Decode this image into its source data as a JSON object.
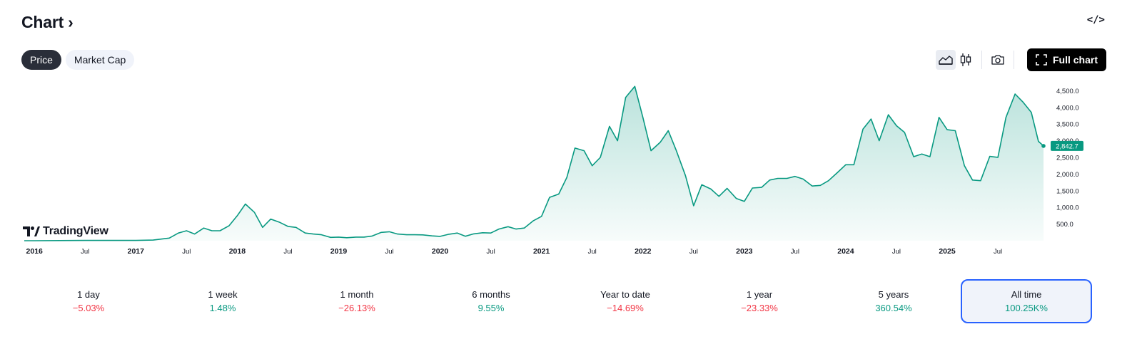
{
  "header": {
    "title": "Chart",
    "chevron": "›"
  },
  "embed_label": "</>",
  "tabs": [
    {
      "label": "Price",
      "active": true
    },
    {
      "label": "Market Cap",
      "active": false
    }
  ],
  "toolbar": {
    "full_chart_label": "Full chart",
    "icons": [
      "area-chart-icon",
      "candles-icon",
      "camera-icon",
      "fullscreen-icon"
    ]
  },
  "logo_text": "TradingView",
  "colors": {
    "line": "#089981",
    "accent_positive": "#089981",
    "accent_negative": "#f23645",
    "active_border": "#2962ff"
  },
  "chart_data": {
    "type": "area",
    "x_ticks": [
      {
        "label": "2016",
        "t": 2016.0,
        "bold": true
      },
      {
        "label": "Jul",
        "t": 2016.5,
        "bold": false
      },
      {
        "label": "2017",
        "t": 2017.0,
        "bold": true
      },
      {
        "label": "Jul",
        "t": 2017.5,
        "bold": false
      },
      {
        "label": "2018",
        "t": 2018.0,
        "bold": true
      },
      {
        "label": "Jul",
        "t": 2018.5,
        "bold": false
      },
      {
        "label": "2019",
        "t": 2019.0,
        "bold": true
      },
      {
        "label": "Jul",
        "t": 2019.5,
        "bold": false
      },
      {
        "label": "2020",
        "t": 2020.0,
        "bold": true
      },
      {
        "label": "Jul",
        "t": 2020.5,
        "bold": false
      },
      {
        "label": "2021",
        "t": 2021.0,
        "bold": true
      },
      {
        "label": "Jul",
        "t": 2021.5,
        "bold": false
      },
      {
        "label": "2022",
        "t": 2022.0,
        "bold": true
      },
      {
        "label": "Jul",
        "t": 2022.5,
        "bold": false
      },
      {
        "label": "2023",
        "t": 2023.0,
        "bold": true
      },
      {
        "label": "Jul",
        "t": 2023.5,
        "bold": false
      },
      {
        "label": "2024",
        "t": 2024.0,
        "bold": true
      },
      {
        "label": "Jul",
        "t": 2024.5,
        "bold": false
      },
      {
        "label": "2025",
        "t": 2025.0,
        "bold": true
      },
      {
        "label": "Jul",
        "t": 2025.5,
        "bold": false
      }
    ],
    "y_ticks": [
      "500.0",
      "1,000.0",
      "1,500.0",
      "2,000.0",
      "2,500.0",
      "3,000.0",
      "3,500.0",
      "4,000.0",
      "4,500.0"
    ],
    "y_tick_values": [
      500,
      1000,
      1500,
      2000,
      2500,
      3000,
      3500,
      4000,
      4500
    ],
    "ylim": [
      0,
      4700
    ],
    "xlim": [
      2015.9,
      2025.95
    ],
    "last_value": 2842.7,
    "last_value_label": "2,842.7",
    "series": [
      {
        "t": 2015.9,
        "v": 1
      },
      {
        "t": 2016.0,
        "v": 1
      },
      {
        "t": 2016.5,
        "v": 9
      },
      {
        "t": 2017.0,
        "v": 8
      },
      {
        "t": 2017.17,
        "v": 20
      },
      {
        "t": 2017.25,
        "v": 50
      },
      {
        "t": 2017.33,
        "v": 80
      },
      {
        "t": 2017.42,
        "v": 230
      },
      {
        "t": 2017.5,
        "v": 300
      },
      {
        "t": 2017.58,
        "v": 200
      },
      {
        "t": 2017.67,
        "v": 380
      },
      {
        "t": 2017.75,
        "v": 300
      },
      {
        "t": 2017.83,
        "v": 300
      },
      {
        "t": 2017.92,
        "v": 450
      },
      {
        "t": 2018.0,
        "v": 750
      },
      {
        "t": 2018.08,
        "v": 1100
      },
      {
        "t": 2018.17,
        "v": 850
      },
      {
        "t": 2018.25,
        "v": 400
      },
      {
        "t": 2018.33,
        "v": 650
      },
      {
        "t": 2018.42,
        "v": 550
      },
      {
        "t": 2018.5,
        "v": 430
      },
      {
        "t": 2018.58,
        "v": 400
      },
      {
        "t": 2018.67,
        "v": 230
      },
      {
        "t": 2018.75,
        "v": 200
      },
      {
        "t": 2018.83,
        "v": 180
      },
      {
        "t": 2018.92,
        "v": 100
      },
      {
        "t": 2019.0,
        "v": 110
      },
      {
        "t": 2019.08,
        "v": 90
      },
      {
        "t": 2019.17,
        "v": 110
      },
      {
        "t": 2019.25,
        "v": 110
      },
      {
        "t": 2019.33,
        "v": 140
      },
      {
        "t": 2019.42,
        "v": 250
      },
      {
        "t": 2019.5,
        "v": 270
      },
      {
        "t": 2019.58,
        "v": 200
      },
      {
        "t": 2019.67,
        "v": 180
      },
      {
        "t": 2019.75,
        "v": 180
      },
      {
        "t": 2019.83,
        "v": 175
      },
      {
        "t": 2019.92,
        "v": 145
      },
      {
        "t": 2020.0,
        "v": 130
      },
      {
        "t": 2020.08,
        "v": 190
      },
      {
        "t": 2020.17,
        "v": 230
      },
      {
        "t": 2020.25,
        "v": 135
      },
      {
        "t": 2020.33,
        "v": 205
      },
      {
        "t": 2020.42,
        "v": 240
      },
      {
        "t": 2020.5,
        "v": 230
      },
      {
        "t": 2020.58,
        "v": 350
      },
      {
        "t": 2020.67,
        "v": 420
      },
      {
        "t": 2020.75,
        "v": 350
      },
      {
        "t": 2020.83,
        "v": 380
      },
      {
        "t": 2020.92,
        "v": 600
      },
      {
        "t": 2021.0,
        "v": 730
      },
      {
        "t": 2021.08,
        "v": 1300
      },
      {
        "t": 2021.17,
        "v": 1400
      },
      {
        "t": 2021.25,
        "v": 1900
      },
      {
        "t": 2021.33,
        "v": 2780
      },
      {
        "t": 2021.42,
        "v": 2700
      },
      {
        "t": 2021.5,
        "v": 2250
      },
      {
        "t": 2021.58,
        "v": 2500
      },
      {
        "t": 2021.67,
        "v": 3430
      },
      {
        "t": 2021.75,
        "v": 3000
      },
      {
        "t": 2021.83,
        "v": 4300
      },
      {
        "t": 2021.92,
        "v": 4630
      },
      {
        "t": 2022.0,
        "v": 3700
      },
      {
        "t": 2022.08,
        "v": 2700
      },
      {
        "t": 2022.17,
        "v": 2950
      },
      {
        "t": 2022.25,
        "v": 3300
      },
      {
        "t": 2022.33,
        "v": 2700
      },
      {
        "t": 2022.42,
        "v": 1950
      },
      {
        "t": 2022.5,
        "v": 1050
      },
      {
        "t": 2022.58,
        "v": 1680
      },
      {
        "t": 2022.67,
        "v": 1550
      },
      {
        "t": 2022.75,
        "v": 1330
      },
      {
        "t": 2022.83,
        "v": 1570
      },
      {
        "t": 2022.92,
        "v": 1270
      },
      {
        "t": 2023.0,
        "v": 1180
      },
      {
        "t": 2023.08,
        "v": 1580
      },
      {
        "t": 2023.17,
        "v": 1600
      },
      {
        "t": 2023.25,
        "v": 1820
      },
      {
        "t": 2023.33,
        "v": 1870
      },
      {
        "t": 2023.42,
        "v": 1870
      },
      {
        "t": 2023.5,
        "v": 1930
      },
      {
        "t": 2023.58,
        "v": 1850
      },
      {
        "t": 2023.67,
        "v": 1640
      },
      {
        "t": 2023.75,
        "v": 1660
      },
      {
        "t": 2023.83,
        "v": 1800
      },
      {
        "t": 2023.92,
        "v": 2050
      },
      {
        "t": 2024.0,
        "v": 2280
      },
      {
        "t": 2024.08,
        "v": 2280
      },
      {
        "t": 2024.17,
        "v": 3350
      },
      {
        "t": 2024.25,
        "v": 3650
      },
      {
        "t": 2024.33,
        "v": 3000
      },
      {
        "t": 2024.42,
        "v": 3780
      },
      {
        "t": 2024.5,
        "v": 3450
      },
      {
        "t": 2024.58,
        "v": 3250
      },
      {
        "t": 2024.67,
        "v": 2520
      },
      {
        "t": 2024.75,
        "v": 2600
      },
      {
        "t": 2024.83,
        "v": 2520
      },
      {
        "t": 2024.92,
        "v": 3700
      },
      {
        "t": 2025.0,
        "v": 3330
      },
      {
        "t": 2025.08,
        "v": 3300
      },
      {
        "t": 2025.17,
        "v": 2250
      },
      {
        "t": 2025.25,
        "v": 1820
      },
      {
        "t": 2025.33,
        "v": 1800
      },
      {
        "t": 2025.42,
        "v": 2530
      },
      {
        "t": 2025.5,
        "v": 2500
      },
      {
        "t": 2025.58,
        "v": 3700
      },
      {
        "t": 2025.67,
        "v": 4400
      },
      {
        "t": 2025.75,
        "v": 4150
      },
      {
        "t": 2025.83,
        "v": 3850
      },
      {
        "t": 2025.9,
        "v": 2980
      },
      {
        "t": 2025.95,
        "v": 2843
      }
    ]
  },
  "periods": [
    {
      "label": "1 day",
      "value": "−5.03%",
      "sign": "neg",
      "active": false
    },
    {
      "label": "1 week",
      "value": "1.48%",
      "sign": "pos",
      "active": false
    },
    {
      "label": "1 month",
      "value": "−26.13%",
      "sign": "neg",
      "active": false
    },
    {
      "label": "6 months",
      "value": "9.55%",
      "sign": "pos",
      "active": false
    },
    {
      "label": "Year to date",
      "value": "−14.69%",
      "sign": "neg",
      "active": false
    },
    {
      "label": "1 year",
      "value": "−23.33%",
      "sign": "neg",
      "active": false
    },
    {
      "label": "5 years",
      "value": "360.54%",
      "sign": "pos",
      "active": false
    },
    {
      "label": "All time",
      "value": "100.25K%",
      "sign": "pos",
      "active": true
    }
  ]
}
